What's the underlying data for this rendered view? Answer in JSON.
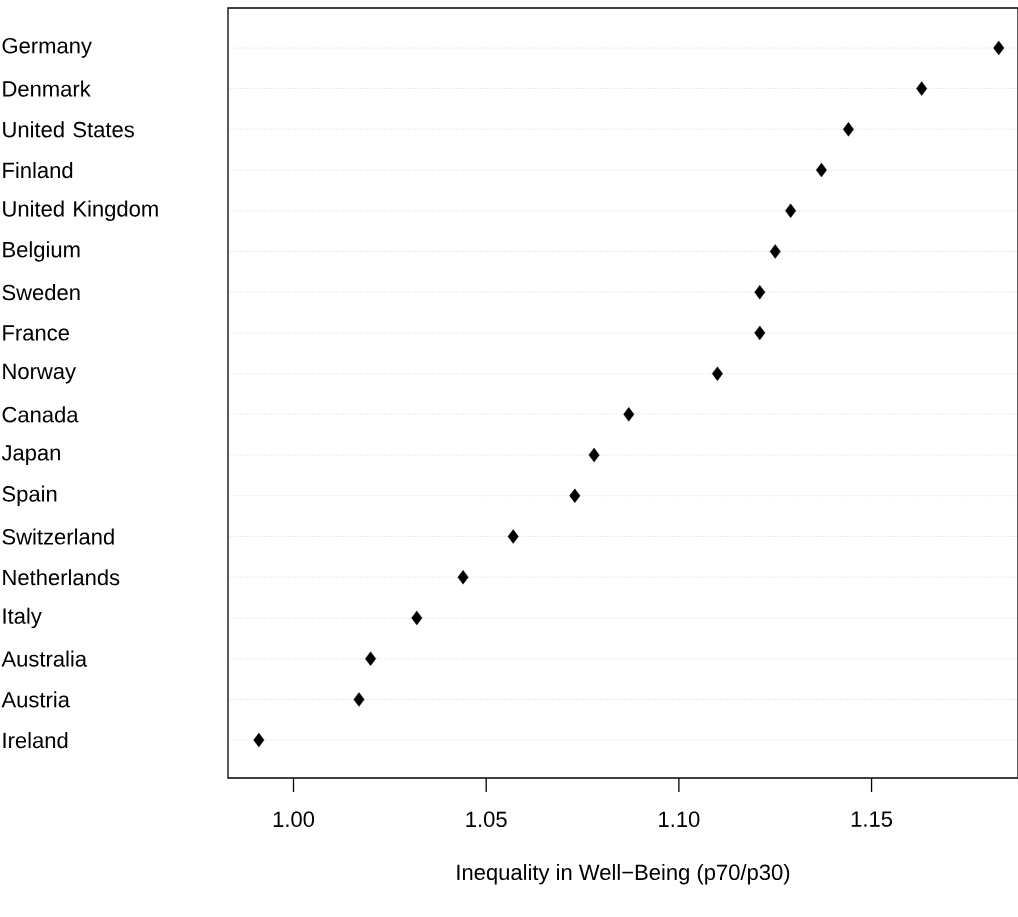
{
  "chart_data": {
    "type": "scatter",
    "orientation": "horizontal",
    "xlabel": "Inequality in Well−Being (p70/p30)",
    "categories": [
      "Germany",
      "Denmark",
      "United States",
      "Finland",
      "United Kingdom",
      "Belgium",
      "Sweden",
      "France",
      "Norway",
      "Canada",
      "Japan",
      "Spain",
      "Switzerland",
      "Netherlands",
      "Italy",
      "Australia",
      "Austria",
      "Ireland"
    ],
    "values": [
      1.183,
      1.163,
      1.144,
      1.137,
      1.129,
      1.125,
      1.121,
      1.121,
      1.11,
      1.087,
      1.078,
      1.073,
      1.057,
      1.044,
      1.032,
      1.02,
      1.017,
      0.991
    ],
    "color": "#000000",
    "marker": "diamond",
    "grid": "y",
    "xlim": [
      0.983,
      1.188
    ],
    "xticks": [
      {
        "value": 1.0,
        "label": "1.00"
      },
      {
        "value": 1.05,
        "label": "1.05"
      },
      {
        "value": 1.1,
        "label": "1.10"
      },
      {
        "value": 1.15,
        "label": "1.15"
      }
    ]
  }
}
